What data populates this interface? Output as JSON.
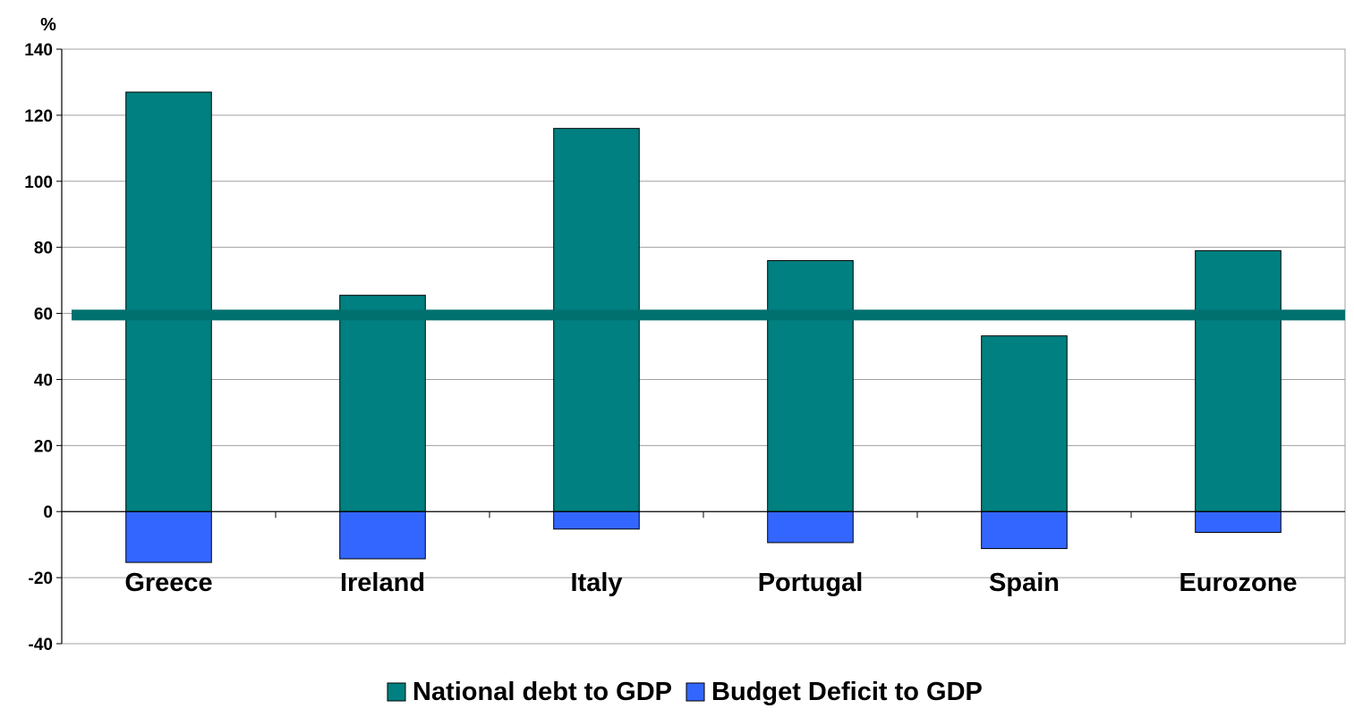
{
  "chart_data": {
    "type": "bar",
    "stacked": true,
    "categories": [
      "Greece",
      "Ireland",
      "Italy",
      "Portugal",
      "Spain",
      "Eurozone"
    ],
    "series": [
      {
        "name": "National debt to GDP",
        "values": [
          127,
          65.5,
          116,
          76,
          53.2,
          79
        ],
        "color": "#008080"
      },
      {
        "name": "Budget Deficit to GDP",
        "values": [
          -15.4,
          -14.3,
          -5.3,
          -9.4,
          -11.2,
          -6.3
        ],
        "color": "#3366FF"
      }
    ],
    "reference_line": {
      "value": 59.5,
      "color": "#00706F"
    },
    "ylabel": "%",
    "ylim": [
      -40,
      140
    ],
    "yticks": [
      140,
      120,
      100,
      80,
      60,
      40,
      20,
      0,
      -20,
      -40
    ],
    "grid": true,
    "legend_position": "bottom"
  }
}
